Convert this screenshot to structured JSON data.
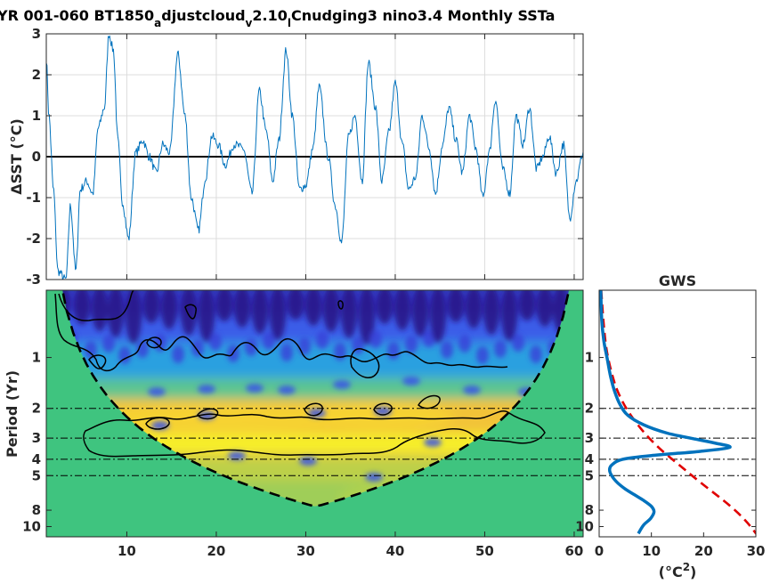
{
  "title_parts": {
    "p1": "YR 001-060 BT1850",
    "s1": "a",
    "p2": "djustcloud",
    "s2": "v",
    "p3": "2.10",
    "s3": "l",
    "p4": "Cnudging3 nino3.4 Monthly SSTa"
  },
  "chart_data": [
    {
      "type": "line",
      "name": "time-series",
      "ylabel": "ΔSST (°C)",
      "xlim": [
        1,
        61
      ],
      "ylim": [
        -3,
        3
      ],
      "yticks": [
        -3,
        -2,
        -1,
        0,
        1,
        2,
        3
      ],
      "xticks": [
        10,
        20,
        30,
        40,
        50,
        60
      ],
      "grid": true,
      "zero_line": true,
      "line_color": "#0072BD",
      "anchor_points": {
        "x": [
          1,
          1.3,
          1.8,
          2.3,
          3.2,
          3.7,
          4.3,
          4.8,
          5.5,
          6.2,
          6.8,
          7.5,
          8.0,
          8.5,
          9.0,
          9.5,
          10.2,
          11.0,
          11.8,
          12.5,
          13.3,
          14.0,
          14.8,
          15.7,
          16.5,
          17.2,
          18.0,
          18.8,
          19.5,
          20.2,
          21.0,
          22.0,
          23.0,
          24.0,
          24.8,
          25.6,
          26.3,
          27.0,
          27.8,
          28.5,
          29.3,
          30.0,
          30.8,
          31.5,
          32.5,
          33.3,
          34.0,
          34.8,
          35.5,
          36.3,
          37.0,
          37.8,
          38.5,
          39.3,
          40.0,
          40.8,
          41.5,
          42.3,
          43.0,
          43.8,
          44.5,
          45.3,
          46.0,
          46.8,
          47.5,
          48.3,
          49.0,
          49.8,
          50.5,
          51.2,
          52.0,
          52.8,
          53.5,
          54.3,
          55.0,
          55.8,
          56.5,
          57.2,
          58.0,
          58.8,
          59.5,
          60.2,
          61
        ],
        "y": [
          2.4,
          1.0,
          -0.8,
          -2.8,
          -3.0,
          -1.2,
          -2.8,
          -0.8,
          -0.6,
          -0.9,
          0.7,
          1.2,
          3.0,
          2.6,
          0.4,
          -1.1,
          -2.0,
          0.1,
          0.4,
          0.0,
          -0.4,
          0.3,
          0.1,
          2.5,
          1.0,
          -1.0,
          -1.8,
          -0.5,
          0.5,
          0.3,
          -0.2,
          0.3,
          0.2,
          -0.9,
          1.6,
          0.6,
          -0.6,
          0.4,
          2.6,
          1.0,
          -0.8,
          -0.7,
          0.2,
          1.7,
          0.0,
          -1.2,
          -2.1,
          0.5,
          1.0,
          -0.6,
          2.3,
          1.2,
          -0.6,
          0.6,
          1.8,
          0.3,
          -0.8,
          -0.5,
          1.0,
          0.2,
          -0.9,
          0.3,
          1.2,
          0.4,
          -0.4,
          1.0,
          0.2,
          -1.0,
          0.1,
          1.4,
          -0.3,
          -0.9,
          1.0,
          0.3,
          1.2,
          -0.3,
          0.0,
          0.5,
          -0.4,
          0.3,
          -1.5,
          -0.6,
          0.1
        ]
      }
    },
    {
      "type": "heatmap",
      "name": "wavelet-power-spectrum",
      "ylabel": "Period (Yr)",
      "xlim": [
        1,
        61
      ],
      "y_scale": "log",
      "ylim": [
        0.4,
        11.5
      ],
      "yticks": [
        1,
        2,
        3,
        4,
        5,
        8,
        10
      ],
      "xticks": [
        10,
        20,
        30,
        40,
        50,
        60
      ],
      "reference_periods": [
        2,
        3,
        4,
        5
      ],
      "cone_of_influence": "dashed",
      "outside_cone_color": "#3fc47f"
    },
    {
      "type": "line",
      "name": "global-wavelet-spectrum",
      "title": "GWS",
      "xlabel": "(°C²)",
      "xlim": [
        0,
        30
      ],
      "xticks": [
        0,
        10,
        20,
        30
      ],
      "y_scale": "log",
      "ylim": [
        0.4,
        11.5
      ],
      "yticks": [
        1,
        2,
        3,
        4,
        5,
        8,
        10
      ],
      "reference_periods": [
        2,
        3,
        4,
        5
      ],
      "series": [
        {
          "name": "",
          "style": "solid",
          "color": "#0072BD",
          "period": [
            0.4,
            0.6,
            0.8,
            1.0,
            1.3,
            1.6,
            1.9,
            2.2,
            2.5,
            2.8,
            3.0,
            3.2,
            3.4,
            3.6,
            3.8,
            4.0,
            4.3,
            4.6,
            5.0,
            5.5,
            6.0,
            6.5,
            7.0,
            7.6,
            8.2,
            9.0,
            9.8,
            11.0
          ],
          "power": [
            0.3,
            0.5,
            0.9,
            1.5,
            2.2,
            3.0,
            4.0,
            5.5,
            8.5,
            13.0,
            17.5,
            22.0,
            25.0,
            19.0,
            10.0,
            4.5,
            2.5,
            2.0,
            2.4,
            3.5,
            5.0,
            6.8,
            8.5,
            10.0,
            10.5,
            9.8,
            8.5,
            7.5
          ]
        },
        {
          "name": "",
          "style": "dashed",
          "color": "#E00000",
          "period": [
            0.4,
            0.6,
            0.8,
            1.0,
            1.3,
            1.6,
            2.0,
            2.5,
            3.0,
            3.5,
            4.0,
            4.5,
            5.0,
            6.0,
            7.0,
            8.0,
            9.0,
            10.0,
            11.5
          ],
          "power": [
            0.4,
            0.8,
            1.2,
            1.7,
            2.6,
            3.6,
            5.2,
            7.4,
            9.6,
            11.8,
            14.0,
            16.0,
            17.8,
            21.0,
            23.8,
            26.0,
            27.7,
            29.0,
            30.5
          ]
        }
      ]
    }
  ]
}
